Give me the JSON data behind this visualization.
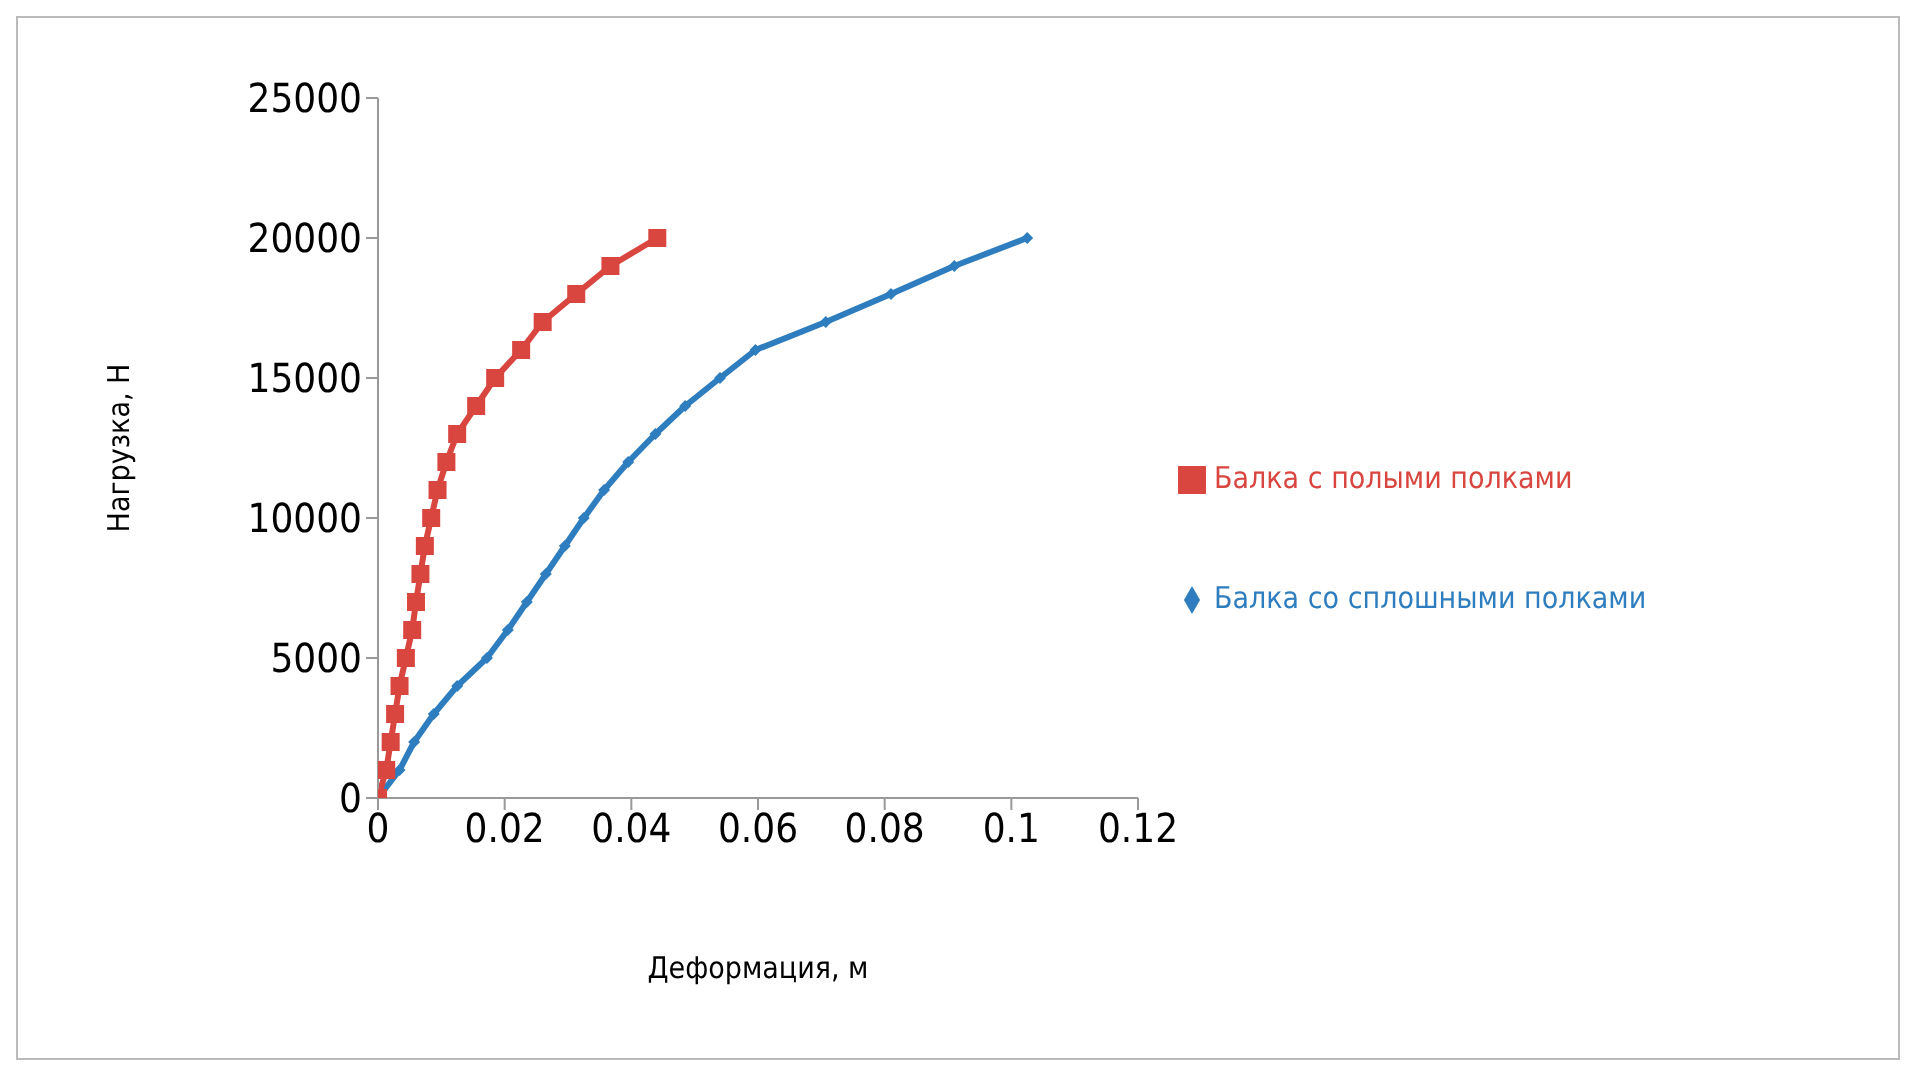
{
  "chart_data": {
    "type": "line",
    "xlabel": "Деформация, м",
    "ylabel": "Нагрузка, Н",
    "xlim": [
      0,
      0.12
    ],
    "xticks": [
      0,
      0.02,
      0.04,
      0.06,
      0.08,
      0.1,
      0.12
    ],
    "ylim": [
      0,
      25000
    ],
    "yticks": [
      0,
      5000,
      10000,
      15000,
      20000,
      25000
    ],
    "grid": false,
    "legend": "right",
    "line_style": "solid",
    "series": [
      {
        "name": "Балка со сплошными полками",
        "color": "#2e7ebf",
        "marker": "diamond",
        "x": [
          0,
          0.0034,
          0.0057,
          0.0088,
          0.0125,
          0.0172,
          0.0205,
          0.0235,
          0.0265,
          0.0295,
          0.0325,
          0.0357,
          0.0395,
          0.0438,
          0.0485,
          0.054,
          0.0596,
          0.0707,
          0.081,
          0.091,
          0.1025
        ],
        "values": [
          0,
          1000,
          2000,
          3000,
          4000,
          5000,
          6000,
          7000,
          8000,
          9000,
          10000,
          11000,
          12000,
          13000,
          14000,
          15000,
          16000,
          17000,
          18000,
          19000,
          20000
        ]
      },
      {
        "name": "Балка с полыми полками",
        "color": "#d9453f",
        "marker": "square",
        "x": [
          0,
          0.0013,
          0.002,
          0.0027,
          0.0034,
          0.0044,
          0.0054,
          0.006,
          0.0067,
          0.0074,
          0.0084,
          0.0094,
          0.0108,
          0.0125,
          0.0155,
          0.0185,
          0.0226,
          0.026,
          0.0313,
          0.0367,
          0.0441
        ],
        "values": [
          0,
          1000,
          2000,
          3000,
          4000,
          5000,
          6000,
          7000,
          8000,
          9000,
          10000,
          11000,
          12000,
          13000,
          14000,
          15000,
          16000,
          17000,
          18000,
          19000,
          20000
        ]
      }
    ]
  }
}
